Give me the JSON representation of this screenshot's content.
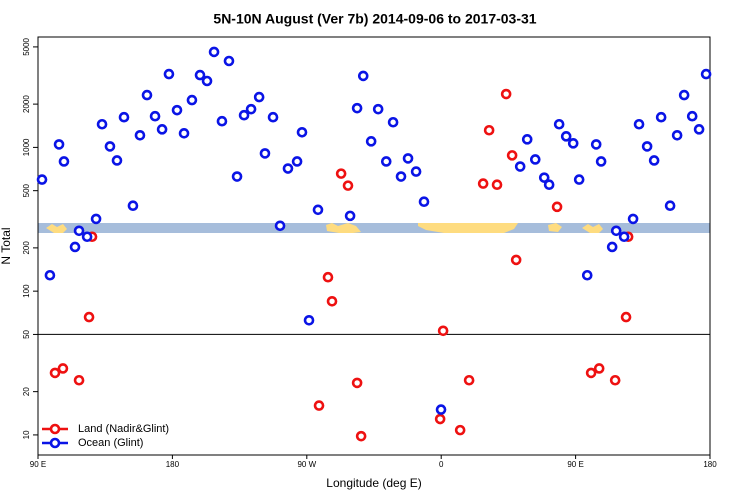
{
  "chart_data": {
    "type": "scatter",
    "title": "5N-10N August (Ver 7b)   2014-09-06 to 2017-03-31",
    "x_label": "Longitude (deg E)",
    "y_label": "N Total",
    "log_y": true,
    "legend": "bottom-left",
    "hline": 50,
    "xlim": [
      90,
      540
    ],
    "xticks": [
      {
        "value": 90,
        "label": "90 E"
      },
      180,
      {
        "value": 270,
        "label": "90 W"
      },
      {
        "value": 360,
        "label": "0"
      },
      {
        "value": 450,
        "label": "90 E"
      },
      {
        "value": 540,
        "label": "180"
      }
    ],
    "ylim": [
      7.25,
      5860
    ],
    "yticks": [
      10,
      20,
      50,
      100,
      200,
      500,
      1000,
      2000,
      5000
    ],
    "series": [
      {
        "name": "Land (Nadir&Glint)",
        "color": "#ee1111",
        "x": [
          101.4,
          106.7,
          117.5,
          126.2,
          124.2,
          284.2,
          286.9,
          293,
          297.6,
          278.2,
          303.7,
          306.4,
          361.3,
          359.3,
          372.7,
          378.7,
          388.1,
          392.1,
          397.4,
          403.5,
          407.5,
          410.2,
          437.6,
          460.4,
          465.8,
          476.5,
          485.2,
          483.8
        ],
        "values": [
          27,
          29,
          24,
          239,
          66,
          125,
          85,
          657,
          542,
          16,
          23,
          9.8,
          53,
          12.9,
          10.8,
          24,
          560,
          1316,
          550,
          2350,
          880,
          165,
          386,
          27,
          29,
          24,
          239,
          66
        ]
      },
      {
        "name": "Ocean (Glint)",
        "color": "#0a14e6",
        "x": [
          92.7,
          98,
          104.1,
          107.4,
          114.8,
          117.5,
          122.9,
          128.9,
          132.9,
          138.2,
          142.9,
          147.6,
          153.6,
          158.3,
          163,
          168.4,
          173.1,
          177.7,
          183.1,
          187.8,
          193.1,
          198.5,
          203.2,
          207.9,
          213.2,
          217.9,
          223.3,
          228,
          232.7,
          238.1,
          242,
          247.4,
          252.1,
          257.4,
          263.5,
          266.8,
          271.5,
          277.5,
          299,
          303.7,
          307.8,
          313.1,
          317.8,
          323.2,
          327.8,
          333.1,
          337.8,
          343.2,
          348.5,
          359.9,
          412.9,
          417.6,
          423,
          429,
          432.3,
          439,
          443.7,
          448.4,
          452.4,
          457.8,
          463.8,
          467.1,
          474.5,
          477.2,
          482.5,
          488.5,
          492.5,
          497.9,
          502.6,
          507.3,
          513.3,
          518,
          522.7,
          528.1,
          532.7,
          537.4
        ],
        "values": [
          597,
          129,
          1049,
          798,
          203,
          263,
          239,
          318,
          1449,
          1016,
          811,
          1622,
          393,
          1214,
          2312,
          1648,
          1335,
          3236,
          1816,
          1253,
          2134,
          3185,
          2896,
          4613,
          1521,
          3990,
          627,
          1675,
          1845,
          2239,
          908,
          1622,
          285,
          713,
          798,
          1274,
          62.7,
          368,
          334,
          1874,
          3141,
          1102,
          1845,
          798,
          1496,
          627,
          838,
          679,
          419,
          15,
          736,
          1138,
          824,
          616,
          550,
          1449,
          1194,
          1067,
          597,
          129,
          1049,
          798,
          203,
          263,
          239,
          318,
          1449,
          1016,
          811,
          1622,
          393,
          1214,
          2312,
          1648,
          1335,
          3236
        ]
      }
    ]
  }
}
